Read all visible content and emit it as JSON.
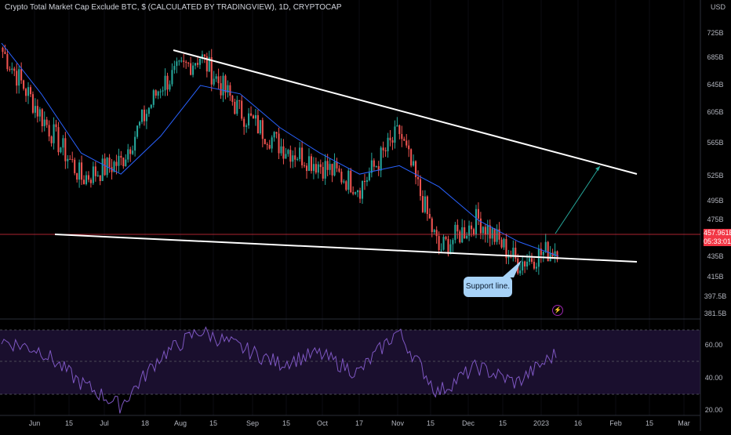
{
  "header": {
    "title": "Crypto Total Market Cap Exclude BTC, $ (CALCULATED BY TRADINGVIEW), 1D, CRYPTOCAP"
  },
  "price_axis": {
    "unit_label": "USD",
    "ticks": [
      "725B",
      "685B",
      "645B",
      "605B",
      "565B",
      "525B",
      "495B",
      "475B",
      "435B",
      "415B",
      "397.5B",
      "381.5B"
    ],
    "last_price": "457.961B",
    "countdown": "05:33:01"
  },
  "rsi_axis": {
    "ticks": [
      "60.00",
      "40.00",
      "20.00"
    ]
  },
  "time_axis": {
    "ticks": [
      "Jun",
      "15",
      "Jul",
      "18",
      "Aug",
      "15",
      "Sep",
      "15",
      "Oct",
      "17",
      "Nov",
      "15",
      "Dec",
      "15",
      "2023",
      "16",
      "Feb",
      "15",
      "Mar"
    ]
  },
  "annotation": {
    "label": "Support line."
  },
  "icons": {
    "alert": "lightning-icon"
  },
  "colors": {
    "up": "#26a69a",
    "down": "#ef5350",
    "ma": "#2962ff",
    "rsi": "#7e57c2",
    "trendline": "#ffffff",
    "price_line": "#f23645"
  },
  "chart_data": [
    {
      "type": "candlestick",
      "title": "Crypto Total Market Cap Exclude BTC",
      "ylabel": "USD",
      "ylim": [
        380,
        740
      ],
      "x": [
        "Jun",
        "Jun 15",
        "Jul",
        "Jul 18",
        "Aug",
        "Aug 15",
        "Sep",
        "Sep 15",
        "Oct",
        "Oct 17",
        "Nov",
        "Nov 15",
        "Dec",
        "Dec 15",
        "2023"
      ],
      "close": [
        690,
        612,
        540,
        560,
        650,
        685,
        620,
        578,
        556,
        530,
        595,
        455,
        492,
        440,
        458
      ],
      "series": [
        {
          "name": "",
          "values": [
            700,
            640,
            570,
            545,
            590,
            650,
            640,
            600,
            570,
            545,
            555,
            530,
            490,
            465,
            448
          ]
        }
      ],
      "trendlines": [
        {
          "from": [
            "May 31",
            465
          ],
          "to": [
            "Jan 22",
            430
          ]
        },
        {
          "from": [
            "Jul 27",
            704
          ],
          "to": [
            "Jan 22",
            530
          ]
        }
      ],
      "projection": {
        "from": [
          "Jan 4",
          462
        ],
        "to": [
          "Jan 17",
          542
        ]
      }
    },
    {
      "type": "line",
      "title": "",
      "ylim": [
        18,
        72
      ],
      "values": [
        64,
        58,
        38,
        24,
        54,
        70,
        60,
        50,
        56,
        44,
        70,
        32,
        48,
        38,
        56
      ]
    }
  ]
}
